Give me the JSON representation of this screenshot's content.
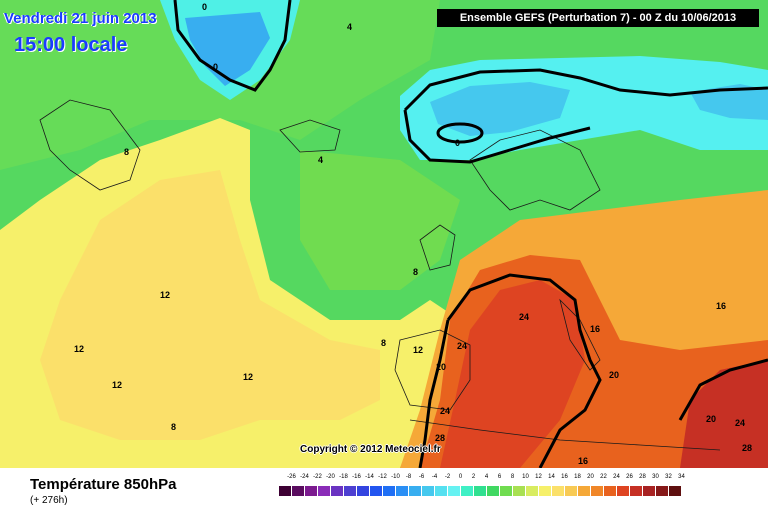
{
  "header": {
    "date": "Vendredi 21 juin 2013",
    "time": "15:00 locale",
    "run_info": "Ensemble GEFS (Perturbation 7)  -  00 Z du 10/06/2013"
  },
  "footer": {
    "variable_title": "Température 850hPa",
    "lead_time": "(+ 276h)",
    "copyright": "Copyright © 2012 Meteociel.fr"
  },
  "legend": {
    "ticks": [
      "-26",
      "-24",
      "-22",
      "-20",
      "-18",
      "-16",
      "-14",
      "-12",
      "-10",
      "-8",
      "-6",
      "-4",
      "-2",
      "0",
      "2",
      "4",
      "6",
      "8",
      "10",
      "12",
      "14",
      "16",
      "18",
      "20",
      "22",
      "24",
      "26",
      "28",
      "30",
      "32",
      "34"
    ],
    "colors": [
      "#3d0033",
      "#5a0c5f",
      "#7b1a8f",
      "#8a2cb8",
      "#6a33c2",
      "#4d3fd1",
      "#3344e0",
      "#2255f0",
      "#1f6ff5",
      "#2a8ff5",
      "#38aef0",
      "#45c8ee",
      "#55e0f0",
      "#66f2f2",
      "#3ff0c5",
      "#30e090",
      "#40d862",
      "#70dc50",
      "#a8e052",
      "#d8ec60",
      "#f6f06a",
      "#fbe06a",
      "#f8ca54",
      "#f5a838",
      "#f08628",
      "#e8621e",
      "#de4422",
      "#c63024",
      "#a82222",
      "#861818",
      "#5e0f0f"
    ]
  },
  "contour_labels": [
    {
      "text": "0",
      "temp": 0
    },
    {
      "text": "0",
      "temp": 0
    },
    {
      "text": "0",
      "temp": 0
    },
    {
      "text": "4",
      "temp": 4
    },
    {
      "text": "4",
      "temp": 4
    },
    {
      "text": "8",
      "temp": 8
    },
    {
      "text": "8",
      "temp": 8
    },
    {
      "text": "8",
      "temp": 8
    },
    {
      "text": "8",
      "temp": 8
    },
    {
      "text": "12",
      "temp": 12
    },
    {
      "text": "12",
      "temp": 12
    },
    {
      "text": "12",
      "temp": 12
    },
    {
      "text": "12",
      "temp": 12
    },
    {
      "text": "12",
      "temp": 12
    },
    {
      "text": "16",
      "temp": 16
    },
    {
      "text": "16",
      "temp": 16
    },
    {
      "text": "16",
      "temp": 16
    },
    {
      "text": "20",
      "temp": 20
    },
    {
      "text": "20",
      "temp": 20
    },
    {
      "text": "20",
      "temp": 20
    },
    {
      "text": "24",
      "temp": 24
    },
    {
      "text": "24",
      "temp": 24
    },
    {
      "text": "24",
      "temp": 24
    },
    {
      "text": "24",
      "temp": 24
    },
    {
      "text": "28",
      "temp": 28
    },
    {
      "text": "28",
      "temp": 28
    }
  ]
}
